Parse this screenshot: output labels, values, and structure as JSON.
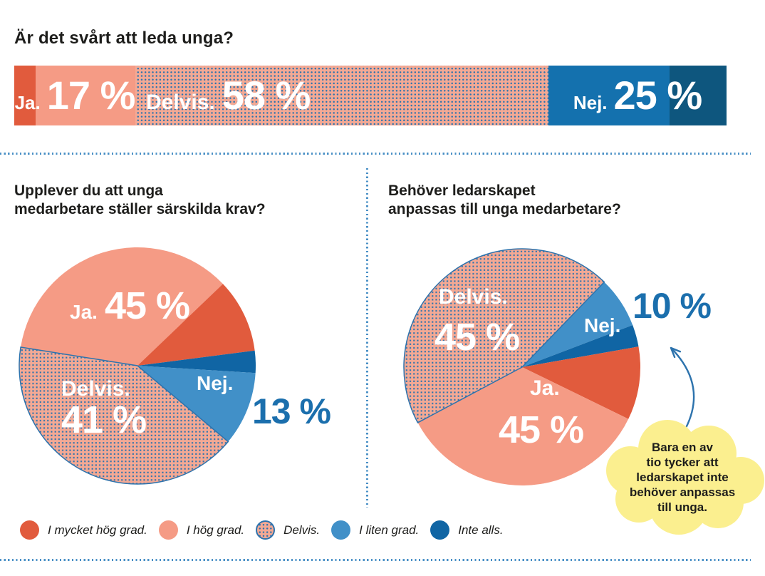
{
  "palette": {
    "mycket_hog": "#e15b3d",
    "hog": "#f59b85",
    "delvis_bg": "#f4a994",
    "delvis_dot": "#2d73ad",
    "liten": "#4190c8",
    "inte_alls": "#1065a4",
    "bar_nej": "#1471ae",
    "bar_nej_dark": "#0e567e",
    "accent_blue": "#1b6fad",
    "divider_blue": "#4a90c6",
    "bubble_yellow": "#fbef8f",
    "text_dark": "#1d1d1b"
  },
  "header": {
    "title": "Är det svårt att leda unga?"
  },
  "sections": {
    "left": {
      "title_lines": [
        "Upplever du att unga",
        "medarbetare ställer särskilda krav?"
      ]
    },
    "right": {
      "title_lines": [
        "Behöver ledarskapet",
        "anpassas till unga medarbetare?"
      ]
    }
  },
  "chart_data": [
    {
      "type": "bar",
      "variant": "horizontal-stacked-100pct",
      "question": "Är det svårt att leda unga?",
      "unit": "%",
      "segments": [
        {
          "group": "Ja.",
          "value": 17,
          "display": "17 %",
          "parts": [
            {
              "category": "I mycket hög grad.",
              "value": 3,
              "color_key": "mycket_hog"
            },
            {
              "category": "I hög grad.",
              "value": 14,
              "color_key": "hog"
            }
          ]
        },
        {
          "group": "Delvis.",
          "value": 58,
          "display": "58 %",
          "parts": [
            {
              "category": "Delvis.",
              "value": 58,
              "color_key": "dots"
            }
          ]
        },
        {
          "group": "Nej.",
          "value": 25,
          "display": "25 %",
          "parts": [
            {
              "category": "I liten grad.",
              "value": 17,
              "color_key": "bar_nej"
            },
            {
              "category": "Inte alls.",
              "value": 8,
              "color_key": "bar_nej_dark"
            }
          ]
        }
      ]
    },
    {
      "type": "pie",
      "question": "Upplever du att unga medarbetare ställer särskilda krav?",
      "start_angle_deg": -81,
      "slices": [
        {
          "category": "I hög grad.",
          "value": 35,
          "color_key": "hog"
        },
        {
          "category": "I mycket hög grad.",
          "value": 10,
          "color_key": "mycket_hog"
        },
        {
          "category": "Inte alls.",
          "value": 3,
          "color_key": "inte_alls"
        },
        {
          "category": "I liten grad.",
          "value": 10,
          "color_key": "liten"
        },
        {
          "category": "Delvis.",
          "value": 41,
          "color_key": "dots"
        }
      ],
      "summary": {
        "ja": 45,
        "delvis": 41,
        "nej": 13
      },
      "labels": {
        "ja": "Ja.",
        "ja_pct": "45 %",
        "delvis": "Delvis.",
        "delvis_pct": "41 %",
        "nej": "Nej.",
        "nej_pct": "13 %"
      }
    },
    {
      "type": "pie",
      "question": "Behöver ledarskapet anpassas till unga medarbetare?",
      "start_angle_deg": 44,
      "slices": [
        {
          "category": "I liten grad.",
          "value": 7,
          "color_key": "liten"
        },
        {
          "category": "Inte alls.",
          "value": 3,
          "color_key": "inte_alls"
        },
        {
          "category": "I mycket hög grad.",
          "value": 10,
          "color_key": "mycket_hog"
        },
        {
          "category": "I hög grad.",
          "value": 35,
          "color_key": "hog"
        },
        {
          "category": "Delvis.",
          "value": 45,
          "color_key": "dots"
        }
      ],
      "summary": {
        "ja": 45,
        "delvis": 45,
        "nej": 10
      },
      "labels": {
        "delvis": "Delvis.",
        "delvis_pct": "45 %",
        "nej": "Nej.",
        "nej_pct": "10 %",
        "ja": "Ja.",
        "ja_pct": "45 %"
      }
    }
  ],
  "legend": {
    "items": [
      {
        "label": "I mycket hög grad.",
        "color_key": "mycket_hog"
      },
      {
        "label": "I hög grad.",
        "color_key": "hog"
      },
      {
        "label": "Delvis.",
        "color_key": "dots"
      },
      {
        "label": "I liten grad.",
        "color_key": "liten"
      },
      {
        "label": "Inte alls.",
        "color_key": "inte_alls"
      }
    ]
  },
  "bubble": {
    "text": "Bara en av tio tycker att ledarskapet inte behöver anpassas till unga.",
    "lines": [
      "Bara en av",
      "tio tycker att",
      "ledarskapet inte",
      "behöver anpassas",
      "till unga."
    ]
  }
}
